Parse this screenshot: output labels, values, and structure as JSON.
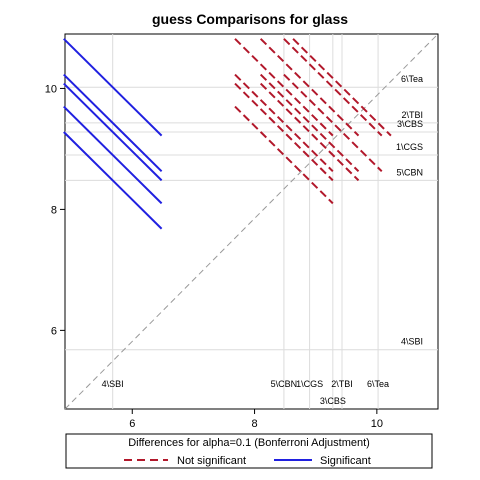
{
  "chart_data": {
    "type": "line",
    "title": "guess Comparisons for glass",
    "xlabel": "",
    "ylabel": "",
    "xlim": [
      4.9,
      11.0
    ],
    "ylim": [
      4.7,
      10.9
    ],
    "xticks": [
      6,
      8,
      10
    ],
    "yticks": [
      6,
      8,
      10
    ],
    "groups": [
      {
        "label": "4\\SBI",
        "mean": 5.68
      },
      {
        "label": "5\\CBN",
        "mean": 8.48
      },
      {
        "label": "1\\CGS",
        "mean": 8.9
      },
      {
        "label": "3\\CBS",
        "mean": 9.28
      },
      {
        "label": "2\\TBI",
        "mean": 9.43
      },
      {
        "label": "6\\Tea",
        "mean": 10.02
      }
    ],
    "series": [
      {
        "name": "Not significant",
        "color": "#b2182b",
        "style": "dashed"
      },
      {
        "name": "Significant",
        "color": "#2020e0",
        "style": "solid"
      }
    ],
    "legend": {
      "title": "Differences for alpha=0.1 (Bonferroni Adjustment)",
      "placement": "bottom"
    },
    "diagonal": {
      "style": "dashed",
      "color": "#999999"
    }
  }
}
